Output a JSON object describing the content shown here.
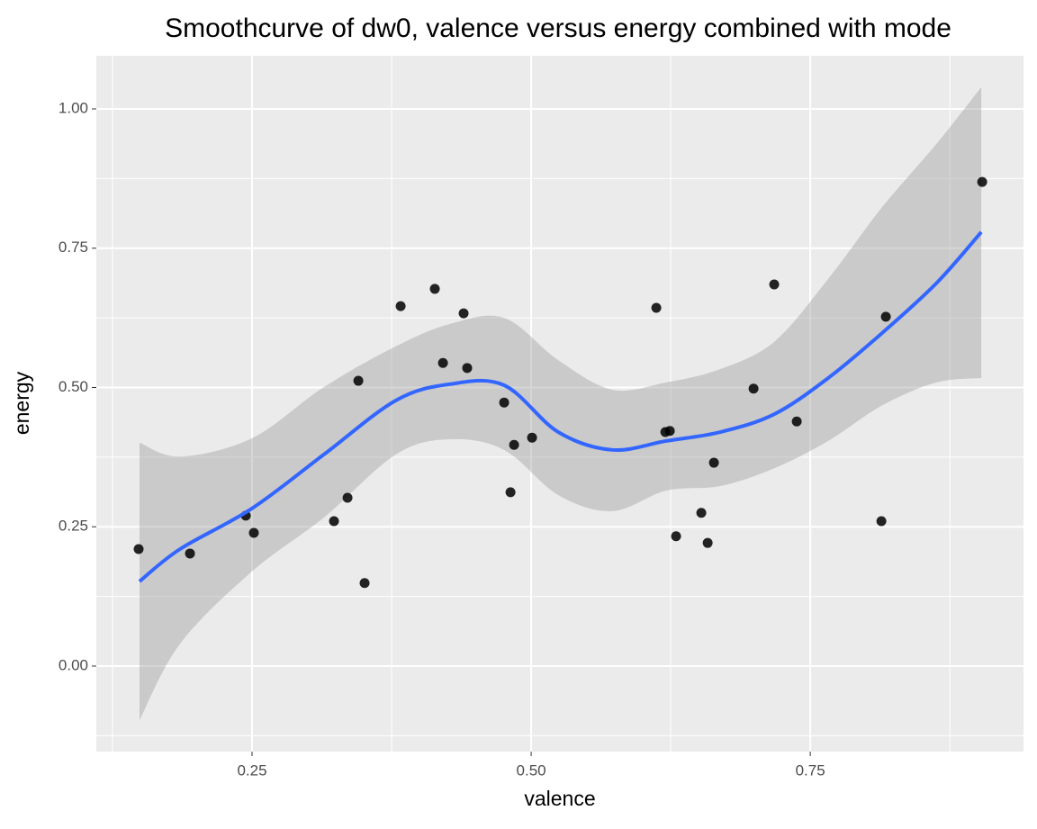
{
  "chart_data": {
    "type": "scatter",
    "title": "Smoothcurve of dw0, valence versus energy combined with mode",
    "x_label": "valence",
    "y_label": "energy",
    "xlim": [
      0.1105,
      0.941
    ],
    "ylim": [
      -0.1535,
      1.0953
    ],
    "xticks": [
      {
        "value": 0.25,
        "label": "0.25"
      },
      {
        "value": 0.5,
        "label": "0.50"
      },
      {
        "value": 0.75,
        "label": "0.75"
      }
    ],
    "yticks": [
      {
        "value": 0,
        "label": "0.00"
      },
      {
        "value": 0.25,
        "label": "0.25"
      },
      {
        "value": 0.5,
        "label": "0.50"
      },
      {
        "value": 0.75,
        "label": "0.75"
      },
      {
        "value": 1,
        "label": "1.00"
      }
    ],
    "grid": true,
    "series": [
      {
        "color": "#000000",
        "x": [
          0.1484,
          0.1944,
          0.2444,
          0.2516,
          0.3234,
          0.3355,
          0.3452,
          0.3508,
          0.3831,
          0.4137,
          0.421,
          0.4395,
          0.4427,
          0.4758,
          0.4815,
          0.4847,
          0.5008,
          0.6121,
          0.6202,
          0.6242,
          0.6298,
          0.6524,
          0.6581,
          0.6637,
          0.6992,
          0.7177,
          0.7379,
          0.8137,
          0.8177,
          0.904
        ],
        "values": [
          0.21,
          0.202,
          0.27,
          0.239,
          0.26,
          0.302,
          0.512,
          0.149,
          0.646,
          0.677,
          0.544,
          0.633,
          0.535,
          0.473,
          0.312,
          0.397,
          0.41,
          0.643,
          0.42,
          0.422,
          0.233,
          0.275,
          0.221,
          0.365,
          0.498,
          0.685,
          0.439,
          0.26,
          0.627,
          0.869
        ]
      }
    ],
    "smooth": {
      "color": "#3366ff",
      "band_color": "#999999",
      "x": [
        0.1492,
        0.1855,
        0.25,
        0.3145,
        0.379,
        0.4274,
        0.4758,
        0.5242,
        0.5726,
        0.621,
        0.6694,
        0.7177,
        0.7661,
        0.8145,
        0.8629,
        0.9032
      ],
      "y": [
        0.152,
        0.21,
        0.283,
        0.38,
        0.477,
        0.506,
        0.504,
        0.42,
        0.388,
        0.404,
        0.42,
        0.452,
        0.517,
        0.598,
        0.687,
        0.779
      ],
      "ymin": [
        -0.097,
        0.04,
        0.17,
        0.267,
        0.38,
        0.407,
        0.388,
        0.307,
        0.278,
        0.315,
        0.323,
        0.355,
        0.404,
        0.468,
        0.509,
        0.517
      ],
      "ymax": [
        0.401,
        0.376,
        0.409,
        0.501,
        0.574,
        0.614,
        0.625,
        0.549,
        0.496,
        0.509,
        0.533,
        0.582,
        0.695,
        0.824,
        0.937,
        1.039
      ]
    }
  }
}
